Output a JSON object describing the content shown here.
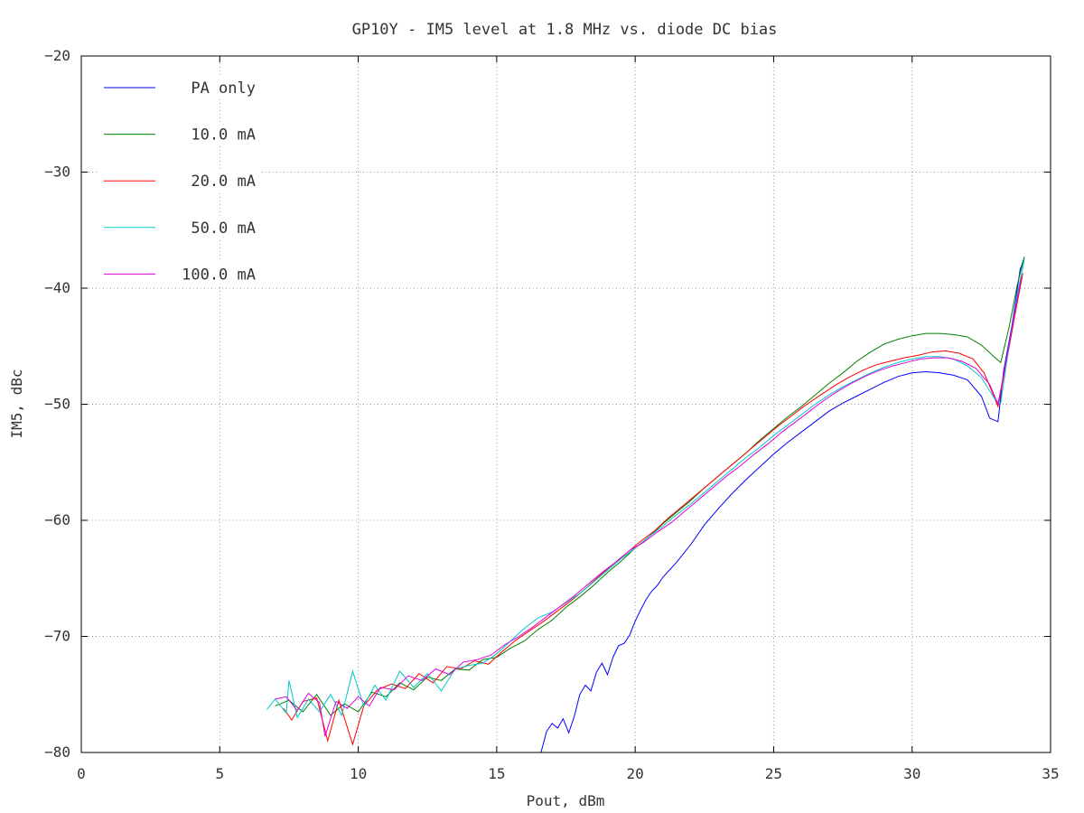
{
  "chart_data": {
    "type": "line",
    "title": "GP10Y - IM5 level at 1.8 MHz vs. diode DC bias",
    "xlabel": "Pout, dBm",
    "ylabel": "IM5, dBc",
    "xlim": [
      0,
      35
    ],
    "ylim": [
      -80,
      -20
    ],
    "xticks": [
      0,
      5,
      10,
      15,
      20,
      25,
      30,
      35
    ],
    "yticks": [
      -80,
      -70,
      -60,
      -50,
      -40,
      -30,
      -20
    ],
    "grid": true,
    "legend_position": "top-left",
    "series": [
      {
        "name": "PA only",
        "color": "#0000ff",
        "points": [
          [
            16.6,
            -80
          ],
          [
            16.8,
            -78.2
          ],
          [
            17.0,
            -77.5
          ],
          [
            17.2,
            -77.9
          ],
          [
            17.4,
            -77.1
          ],
          [
            17.6,
            -78.3
          ],
          [
            17.8,
            -76.9
          ],
          [
            18.0,
            -75.0
          ],
          [
            18.2,
            -74.2
          ],
          [
            18.4,
            -74.7
          ],
          [
            18.6,
            -73.1
          ],
          [
            18.8,
            -72.3
          ],
          [
            19.0,
            -73.3
          ],
          [
            19.2,
            -71.8
          ],
          [
            19.4,
            -70.8
          ],
          [
            19.6,
            -70.6
          ],
          [
            19.8,
            -69.9
          ],
          [
            20.0,
            -68.7
          ],
          [
            20.2,
            -67.7
          ],
          [
            20.4,
            -66.8
          ],
          [
            20.6,
            -66.1
          ],
          [
            20.8,
            -65.6
          ],
          [
            21.0,
            -64.9
          ],
          [
            21.5,
            -63.6
          ],
          [
            22.0,
            -62.1
          ],
          [
            22.5,
            -60.4
          ],
          [
            23.0,
            -59.0
          ],
          [
            23.5,
            -57.7
          ],
          [
            24.0,
            -56.5
          ],
          [
            24.5,
            -55.4
          ],
          [
            25.0,
            -54.3
          ],
          [
            25.5,
            -53.3
          ],
          [
            26.0,
            -52.4
          ],
          [
            26.5,
            -51.5
          ],
          [
            27.0,
            -50.6
          ],
          [
            27.5,
            -49.9
          ],
          [
            28.0,
            -49.3
          ],
          [
            28.5,
            -48.7
          ],
          [
            29.0,
            -48.1
          ],
          [
            29.5,
            -47.6
          ],
          [
            30.0,
            -47.3
          ],
          [
            30.5,
            -47.2
          ],
          [
            31.0,
            -47.3
          ],
          [
            31.5,
            -47.5
          ],
          [
            32.0,
            -47.9
          ],
          [
            32.5,
            -49.3
          ],
          [
            32.8,
            -51.2
          ],
          [
            33.1,
            -51.5
          ],
          [
            33.3,
            -47.2
          ],
          [
            33.6,
            -43.3
          ],
          [
            33.9,
            -38.4
          ],
          [
            34.05,
            -37.4
          ]
        ]
      },
      {
        "name": "10.0 mA",
        "color": "#008000",
        "points": [
          [
            7.0,
            -76.0
          ],
          [
            7.5,
            -75.5
          ],
          [
            8.0,
            -76.5
          ],
          [
            8.5,
            -75.0
          ],
          [
            9.0,
            -76.8
          ],
          [
            9.5,
            -75.8
          ],
          [
            10.0,
            -76.5
          ],
          [
            10.5,
            -74.8
          ],
          [
            11.0,
            -75.2
          ],
          [
            11.5,
            -74.0
          ],
          [
            12.0,
            -74.6
          ],
          [
            12.5,
            -73.5
          ],
          [
            13.0,
            -73.8
          ],
          [
            13.5,
            -72.8
          ],
          [
            14.0,
            -72.9
          ],
          [
            14.5,
            -72.0
          ],
          [
            15.0,
            -71.8
          ],
          [
            15.5,
            -71.0
          ],
          [
            16.0,
            -70.4
          ],
          [
            16.5,
            -69.4
          ],
          [
            17.0,
            -68.6
          ],
          [
            17.5,
            -67.5
          ],
          [
            18.0,
            -66.6
          ],
          [
            18.5,
            -65.6
          ],
          [
            19.0,
            -64.5
          ],
          [
            19.5,
            -63.5
          ],
          [
            20.0,
            -62.4
          ],
          [
            20.5,
            -61.4
          ],
          [
            21.0,
            -60.3
          ],
          [
            21.5,
            -59.3
          ],
          [
            22.0,
            -58.3
          ],
          [
            22.5,
            -57.2
          ],
          [
            23.0,
            -56.2
          ],
          [
            23.5,
            -55.2
          ],
          [
            24.0,
            -54.2
          ],
          [
            24.5,
            -53.1
          ],
          [
            25.0,
            -52.1
          ],
          [
            25.5,
            -51.1
          ],
          [
            26.0,
            -50.2
          ],
          [
            26.5,
            -49.2
          ],
          [
            27.0,
            -48.2
          ],
          [
            27.5,
            -47.3
          ],
          [
            28.0,
            -46.3
          ],
          [
            28.5,
            -45.5
          ],
          [
            29.0,
            -44.8
          ],
          [
            29.5,
            -44.4
          ],
          [
            30.0,
            -44.1
          ],
          [
            30.5,
            -43.9
          ],
          [
            31.0,
            -43.9
          ],
          [
            31.5,
            -44.0
          ],
          [
            32.0,
            -44.2
          ],
          [
            32.5,
            -44.9
          ],
          [
            33.0,
            -46.0
          ],
          [
            33.2,
            -46.4
          ],
          [
            33.5,
            -43.4
          ],
          [
            33.8,
            -39.7
          ],
          [
            34.05,
            -37.3
          ]
        ]
      },
      {
        "name": "20.0 mA",
        "color": "#ff0000",
        "points": [
          [
            7.3,
            -76.2
          ],
          [
            7.6,
            -77.2
          ],
          [
            8.0,
            -75.6
          ],
          [
            8.5,
            -75.3
          ],
          [
            8.9,
            -79.0
          ],
          [
            9.3,
            -75.5
          ],
          [
            9.8,
            -79.3
          ],
          [
            10.2,
            -76.0
          ],
          [
            10.7,
            -74.6
          ],
          [
            11.2,
            -74.1
          ],
          [
            11.7,
            -74.5
          ],
          [
            12.2,
            -73.2
          ],
          [
            12.7,
            -74.0
          ],
          [
            13.2,
            -72.6
          ],
          [
            13.7,
            -72.8
          ],
          [
            14.2,
            -72.1
          ],
          [
            14.7,
            -72.4
          ],
          [
            15.2,
            -71.3
          ],
          [
            15.7,
            -70.3
          ],
          [
            16.2,
            -69.5
          ],
          [
            16.7,
            -68.7
          ],
          [
            17.2,
            -67.8
          ],
          [
            17.7,
            -66.9
          ],
          [
            18.2,
            -65.9
          ],
          [
            18.7,
            -64.8
          ],
          [
            19.2,
            -63.8
          ],
          [
            19.7,
            -62.8
          ],
          [
            20.2,
            -61.8
          ],
          [
            20.7,
            -60.9
          ],
          [
            21.2,
            -59.8
          ],
          [
            21.7,
            -58.8
          ],
          [
            22.2,
            -57.8
          ],
          [
            22.7,
            -56.8
          ],
          [
            23.2,
            -55.8
          ],
          [
            23.7,
            -54.8
          ],
          [
            24.2,
            -53.8
          ],
          [
            24.7,
            -52.8
          ],
          [
            25.2,
            -51.8
          ],
          [
            25.7,
            -50.9
          ],
          [
            26.2,
            -50.0
          ],
          [
            26.7,
            -49.2
          ],
          [
            27.2,
            -48.4
          ],
          [
            27.7,
            -47.7
          ],
          [
            28.2,
            -47.1
          ],
          [
            28.7,
            -46.6
          ],
          [
            29.2,
            -46.3
          ],
          [
            29.7,
            -46.0
          ],
          [
            30.2,
            -45.8
          ],
          [
            30.7,
            -45.5
          ],
          [
            31.2,
            -45.4
          ],
          [
            31.7,
            -45.6
          ],
          [
            32.2,
            -46.1
          ],
          [
            32.6,
            -47.3
          ],
          [
            32.9,
            -49.0
          ],
          [
            33.1,
            -50.2
          ],
          [
            33.4,
            -46.5
          ],
          [
            33.7,
            -42.5
          ],
          [
            34.0,
            -38.7
          ]
        ]
      },
      {
        "name": "50.0 mA",
        "color": "#00c8c8",
        "points": [
          [
            6.7,
            -76.3
          ],
          [
            7.0,
            -75.4
          ],
          [
            7.4,
            -76.6
          ],
          [
            7.5,
            -73.8
          ],
          [
            7.8,
            -77.0
          ],
          [
            8.2,
            -75.4
          ],
          [
            8.6,
            -76.5
          ],
          [
            9.0,
            -75.0
          ],
          [
            9.4,
            -76.8
          ],
          [
            9.8,
            -73.0
          ],
          [
            10.2,
            -76.0
          ],
          [
            10.6,
            -74.2
          ],
          [
            11.0,
            -75.5
          ],
          [
            11.5,
            -73.0
          ],
          [
            12.0,
            -74.4
          ],
          [
            12.5,
            -73.2
          ],
          [
            13.0,
            -74.7
          ],
          [
            13.5,
            -72.8
          ],
          [
            14.0,
            -72.5
          ],
          [
            14.5,
            -72.3
          ],
          [
            15.0,
            -71.5
          ],
          [
            15.5,
            -70.4
          ],
          [
            16.0,
            -69.3
          ],
          [
            16.5,
            -68.4
          ],
          [
            17.0,
            -67.9
          ],
          [
            17.5,
            -67.1
          ],
          [
            18.0,
            -66.3
          ],
          [
            18.5,
            -65.3
          ],
          [
            19.0,
            -64.3
          ],
          [
            19.5,
            -63.3
          ],
          [
            20.0,
            -62.4
          ],
          [
            20.5,
            -61.4
          ],
          [
            21.0,
            -60.5
          ],
          [
            21.5,
            -59.5
          ],
          [
            22.0,
            -58.6
          ],
          [
            22.5,
            -57.6
          ],
          [
            23.0,
            -56.6
          ],
          [
            23.5,
            -55.6
          ],
          [
            24.0,
            -54.6
          ],
          [
            24.5,
            -53.7
          ],
          [
            25.0,
            -52.7
          ],
          [
            25.5,
            -51.8
          ],
          [
            26.0,
            -50.9
          ],
          [
            26.5,
            -50.0
          ],
          [
            27.0,
            -49.2
          ],
          [
            27.5,
            -48.5
          ],
          [
            28.0,
            -47.9
          ],
          [
            28.5,
            -47.3
          ],
          [
            29.0,
            -46.8
          ],
          [
            29.5,
            -46.4
          ],
          [
            30.0,
            -46.1
          ],
          [
            30.5,
            -45.9
          ],
          [
            31.0,
            -45.9
          ],
          [
            31.5,
            -46.1
          ],
          [
            32.0,
            -46.7
          ],
          [
            32.5,
            -47.7
          ],
          [
            33.0,
            -49.6
          ],
          [
            33.2,
            -49.9
          ],
          [
            33.5,
            -45.0
          ],
          [
            33.8,
            -40.5
          ],
          [
            34.05,
            -37.6
          ]
        ]
      },
      {
        "name": "100.0 mA",
        "color": "#e000e0",
        "points": [
          [
            7.0,
            -75.4
          ],
          [
            7.4,
            -75.2
          ],
          [
            7.8,
            -76.4
          ],
          [
            8.2,
            -74.9
          ],
          [
            8.6,
            -75.7
          ],
          [
            8.8,
            -78.6
          ],
          [
            9.2,
            -75.6
          ],
          [
            9.6,
            -76.2
          ],
          [
            10.0,
            -75.2
          ],
          [
            10.4,
            -76.0
          ],
          [
            10.8,
            -74.4
          ],
          [
            11.3,
            -74.6
          ],
          [
            11.8,
            -73.4
          ],
          [
            12.3,
            -73.8
          ],
          [
            12.8,
            -72.8
          ],
          [
            13.3,
            -73.3
          ],
          [
            13.8,
            -72.2
          ],
          [
            14.3,
            -72.0
          ],
          [
            14.8,
            -71.6
          ],
          [
            15.3,
            -70.7
          ],
          [
            15.8,
            -70.0
          ],
          [
            16.3,
            -69.2
          ],
          [
            16.8,
            -68.3
          ],
          [
            17.3,
            -67.4
          ],
          [
            17.8,
            -66.5
          ],
          [
            18.3,
            -65.5
          ],
          [
            18.8,
            -64.5
          ],
          [
            19.3,
            -63.6
          ],
          [
            19.8,
            -62.6
          ],
          [
            20.3,
            -61.9
          ],
          [
            20.8,
            -61.0
          ],
          [
            21.3,
            -60.2
          ],
          [
            21.8,
            -59.2
          ],
          [
            22.3,
            -58.2
          ],
          [
            22.8,
            -57.2
          ],
          [
            23.3,
            -56.2
          ],
          [
            23.8,
            -55.3
          ],
          [
            24.3,
            -54.3
          ],
          [
            24.8,
            -53.4
          ],
          [
            25.3,
            -52.4
          ],
          [
            25.8,
            -51.5
          ],
          [
            26.3,
            -50.6
          ],
          [
            26.8,
            -49.7
          ],
          [
            27.3,
            -48.9
          ],
          [
            27.8,
            -48.2
          ],
          [
            28.3,
            -47.6
          ],
          [
            28.8,
            -47.1
          ],
          [
            29.3,
            -46.7
          ],
          [
            29.8,
            -46.4
          ],
          [
            30.3,
            -46.1
          ],
          [
            30.8,
            -46.0
          ],
          [
            31.3,
            -46.0
          ],
          [
            31.8,
            -46.3
          ],
          [
            32.3,
            -46.9
          ],
          [
            32.8,
            -48.3
          ],
          [
            33.1,
            -50.0
          ],
          [
            33.4,
            -46.2
          ],
          [
            33.7,
            -42.2
          ],
          [
            33.95,
            -39.0
          ]
        ]
      }
    ]
  }
}
